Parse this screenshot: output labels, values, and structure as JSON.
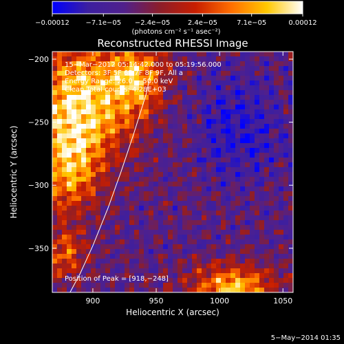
{
  "chart_data": {
    "type": "heatmap",
    "title": "Reconstructed RHESSI Image",
    "xlabel": "Heliocentric X (arcsec)",
    "ylabel": "Heliocentric Y (arcsec)",
    "xlim": [
      868,
      1058
    ],
    "ylim": [
      -385,
      -194
    ],
    "x_ticks": [
      900,
      950,
      1000,
      1050
    ],
    "x_tick_labels": [
      "900",
      "950",
      "1000",
      "1050"
    ],
    "y_ticks": [
      -200,
      -250,
      -300,
      -350
    ],
    "y_tick_labels": [
      "−200",
      "−250",
      "−300",
      "−350"
    ],
    "colorbar": {
      "range": [
        -0.00012,
        0.00012
      ],
      "tick_values": [
        -0.00012,
        -7.1e-05,
        -2.4e-05,
        2.4e-05,
        7.1e-05,
        0.00012
      ],
      "tick_labels": [
        "−0.00012",
        "−7.1e−05",
        "−2.4e−05",
        "2.4e−05",
        "7.1e−05",
        "0.00012"
      ],
      "units_label": "(photons cm⁻² s⁻¹ asec⁻²)",
      "colormap": [
        "#0000ff",
        "#3c1fa0",
        "#50208c",
        "#8c1e2a",
        "#c81e00",
        "#ff6e00",
        "#ffc800",
        "#ffffff"
      ]
    },
    "annotations": [
      "15−Mar−2012 05:14:42.000 to 05:19:56.000",
      "Detectors: 3F 5F 6F 7F 8F 9F, All a",
      "Energy Range: 26.0 − 50.0 keV",
      "Clean     Total counts: 4.28E+03",
      "Position of Peak = [918,−248]"
    ],
    "peak": [
      918,
      -248
    ],
    "limb": [
      [
        882,
        -385
      ],
      [
        890,
        -370
      ],
      [
        900,
        -348
      ],
      [
        912,
        -318
      ],
      [
        922,
        -290
      ],
      [
        932,
        -260
      ],
      [
        942,
        -228
      ],
      [
        946,
        -210
      ]
    ],
    "footer": "5−May−2014 01:35",
    "grid": false
  }
}
